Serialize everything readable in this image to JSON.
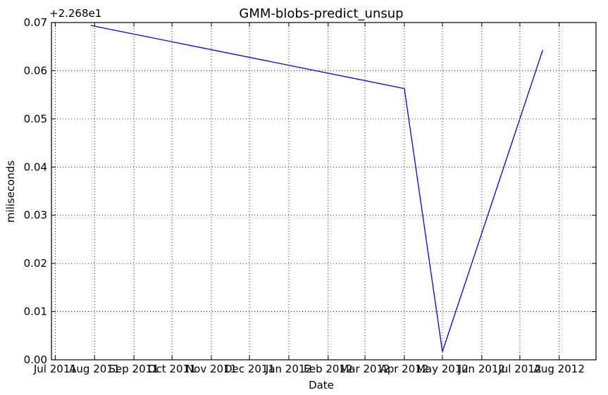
{
  "chart_data": {
    "type": "line",
    "title": "GMM-blobs-predict_unsup",
    "xlabel": "Date",
    "ylabel": "miliseconds",
    "offset_text": "+2.268e1",
    "ylim": [
      0.0,
      0.07
    ],
    "xlim": [
      "2011-06-28",
      "2012-08-30"
    ],
    "grid": true,
    "y_ticks": [
      "0.00",
      "0.01",
      "0.02",
      "0.03",
      "0.04",
      "0.05",
      "0.06",
      "0.07"
    ],
    "y_tick_values": [
      0.0,
      0.01,
      0.02,
      0.03,
      0.04,
      0.05,
      0.06,
      0.07
    ],
    "x_ticks": [
      "Jul 2011",
      "Aug 2011",
      "Sep 2011",
      "Oct 2011",
      "Nov 2011",
      "Dec 2011",
      "Jan 2012",
      "Feb 2012",
      "Mar 2012",
      "Apr 2012",
      "May 2012",
      "Jun 2012",
      "Jul 2012",
      "Aug 2012"
    ],
    "x_tick_dates": [
      "2011-07-01",
      "2011-08-01",
      "2011-09-01",
      "2011-10-01",
      "2011-11-01",
      "2011-12-01",
      "2012-01-01",
      "2012-02-01",
      "2012-03-01",
      "2012-04-01",
      "2012-05-01",
      "2012-06-01",
      "2012-07-01",
      "2012-08-01"
    ],
    "series": [
      {
        "color": "#0000ff",
        "x": [
          "2011-07-29",
          "2012-04-01",
          "2012-05-01",
          "2012-07-19"
        ],
        "y": [
          0.0694,
          0.0563,
          0.0017,
          0.0643
        ]
      }
    ]
  }
}
